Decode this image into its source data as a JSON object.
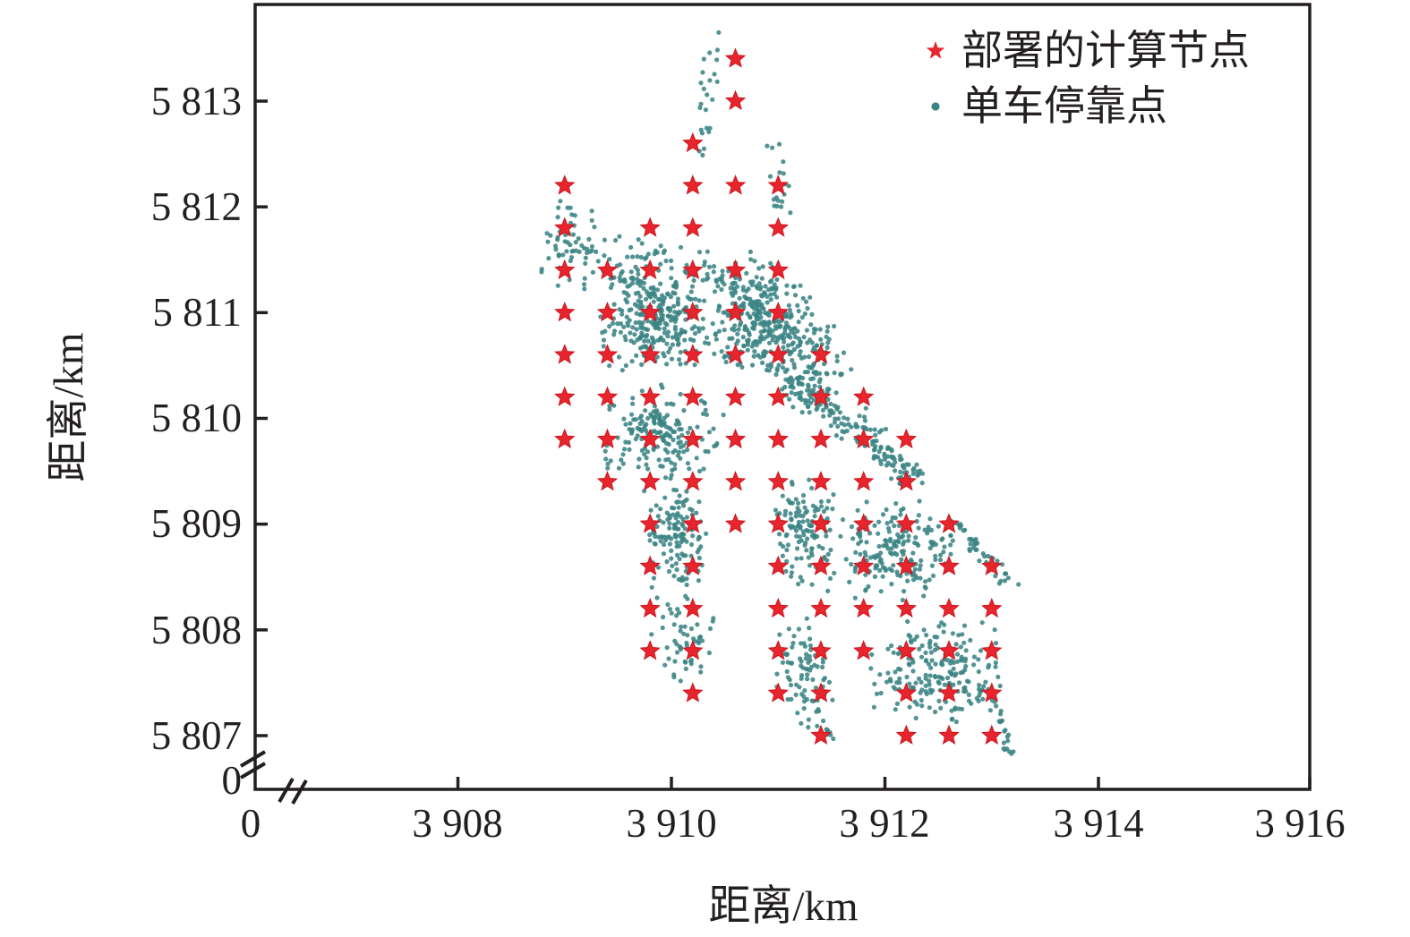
{
  "chart_data": {
    "type": "scatter",
    "title": "",
    "xlabel": "距离/km",
    "ylabel": "距离/km",
    "grid": false,
    "legend_position": "upper right inside",
    "axis_break": {
      "x_axis": true,
      "y_axis": true
    },
    "xlim": [
      3907.0,
      3916.0
    ],
    "ylim": [
      5806.5,
      5813.75
    ],
    "x_ticks": [
      {
        "label": "0",
        "value": 0
      },
      {
        "label": "3 908",
        "value": 3908
      },
      {
        "label": "3 910",
        "value": 3910
      },
      {
        "label": "3 912",
        "value": 3912
      },
      {
        "label": "3 914",
        "value": 3914
      },
      {
        "label": "3 916",
        "value": 3916
      }
    ],
    "y_ticks": [
      {
        "label": "5 813",
        "value": 5813
      },
      {
        "label": "5 812",
        "value": 5812
      },
      {
        "label": "5 811",
        "value": 5811
      },
      {
        "label": "5 810",
        "value": 5810
      },
      {
        "label": "5 809",
        "value": 5809
      },
      {
        "label": "5 808",
        "value": 5808
      },
      {
        "label": "5 807",
        "value": 5807
      },
      {
        "label": "0",
        "value": 0
      }
    ],
    "colors": {
      "axis": "#231f20",
      "background": "#ffffff"
    },
    "series": [
      {
        "name": "部署的计算节点",
        "marker": "star",
        "color": "#e8242c",
        "grid_spacing_km": 0.4,
        "points": [
          [
            3910.6,
            5813.4
          ],
          [
            3910.6,
            5813.0
          ],
          [
            3910.2,
            5812.6
          ],
          [
            3909.0,
            5812.2
          ],
          [
            3910.2,
            5812.2
          ],
          [
            3910.6,
            5812.2
          ],
          [
            3911.0,
            5812.2
          ],
          [
            3909.0,
            5811.8
          ],
          [
            3909.8,
            5811.8
          ],
          [
            3910.2,
            5811.8
          ],
          [
            3911.0,
            5811.8
          ],
          [
            3909.0,
            5811.4
          ],
          [
            3909.4,
            5811.4
          ],
          [
            3909.8,
            5811.4
          ],
          [
            3910.2,
            5811.4
          ],
          [
            3910.6,
            5811.4
          ],
          [
            3911.0,
            5811.4
          ],
          [
            3909.0,
            5811.0
          ],
          [
            3909.4,
            5811.0
          ],
          [
            3909.8,
            5811.0
          ],
          [
            3910.2,
            5811.0
          ],
          [
            3910.6,
            5811.0
          ],
          [
            3911.0,
            5811.0
          ],
          [
            3909.0,
            5810.6
          ],
          [
            3909.4,
            5810.6
          ],
          [
            3909.8,
            5810.6
          ],
          [
            3910.2,
            5810.6
          ],
          [
            3910.6,
            5810.6
          ],
          [
            3911.0,
            5810.6
          ],
          [
            3911.4,
            5810.6
          ],
          [
            3909.0,
            5810.2
          ],
          [
            3909.4,
            5810.2
          ],
          [
            3909.8,
            5810.2
          ],
          [
            3910.2,
            5810.2
          ],
          [
            3910.6,
            5810.2
          ],
          [
            3911.0,
            5810.2
          ],
          [
            3911.4,
            5810.2
          ],
          [
            3911.8,
            5810.2
          ],
          [
            3909.0,
            5809.8
          ],
          [
            3909.4,
            5809.8
          ],
          [
            3909.8,
            5809.8
          ],
          [
            3910.2,
            5809.8
          ],
          [
            3910.6,
            5809.8
          ],
          [
            3911.0,
            5809.8
          ],
          [
            3911.4,
            5809.8
          ],
          [
            3911.8,
            5809.8
          ],
          [
            3912.2,
            5809.8
          ],
          [
            3909.4,
            5809.4
          ],
          [
            3909.8,
            5809.4
          ],
          [
            3910.2,
            5809.4
          ],
          [
            3910.6,
            5809.4
          ],
          [
            3911.0,
            5809.4
          ],
          [
            3911.4,
            5809.4
          ],
          [
            3911.8,
            5809.4
          ],
          [
            3912.2,
            5809.4
          ],
          [
            3909.8,
            5809.0
          ],
          [
            3910.2,
            5809.0
          ],
          [
            3910.6,
            5809.0
          ],
          [
            3911.0,
            5809.0
          ],
          [
            3911.4,
            5809.0
          ],
          [
            3911.8,
            5809.0
          ],
          [
            3912.2,
            5809.0
          ],
          [
            3912.6,
            5809.0
          ],
          [
            3909.8,
            5808.6
          ],
          [
            3910.2,
            5808.6
          ],
          [
            3911.0,
            5808.6
          ],
          [
            3911.4,
            5808.6
          ],
          [
            3911.8,
            5808.6
          ],
          [
            3912.2,
            5808.6
          ],
          [
            3912.6,
            5808.6
          ],
          [
            3913.0,
            5808.6
          ],
          [
            3909.8,
            5808.2
          ],
          [
            3910.2,
            5808.2
          ],
          [
            3911.0,
            5808.2
          ],
          [
            3911.4,
            5808.2
          ],
          [
            3911.8,
            5808.2
          ],
          [
            3912.2,
            5808.2
          ],
          [
            3912.6,
            5808.2
          ],
          [
            3913.0,
            5808.2
          ],
          [
            3909.8,
            5807.8
          ],
          [
            3910.2,
            5807.8
          ],
          [
            3911.0,
            5807.8
          ],
          [
            3911.4,
            5807.8
          ],
          [
            3911.8,
            5807.8
          ],
          [
            3912.2,
            5807.8
          ],
          [
            3912.6,
            5807.8
          ],
          [
            3913.0,
            5807.8
          ],
          [
            3910.2,
            5807.4
          ],
          [
            3911.0,
            5807.4
          ],
          [
            3911.4,
            5807.4
          ],
          [
            3912.2,
            5807.4
          ],
          [
            3912.6,
            5807.4
          ],
          [
            3913.0,
            5807.4
          ],
          [
            3911.4,
            5807.0
          ],
          [
            3912.2,
            5807.0
          ],
          [
            3912.6,
            5807.0
          ],
          [
            3913.0,
            5807.0
          ]
        ]
      },
      {
        "name": "单车停靠点",
        "marker": "dot",
        "color": "#3b8484",
        "point_model": "clustered-approximation",
        "seed": 20240523,
        "approx_count": 2056,
        "clusters": [
          {
            "type": "line",
            "x1": 3910.45,
            "y1": 5813.65,
            "x2": 3910.3,
            "y2": 5812.5,
            "w": 0.3,
            "n": 24
          },
          {
            "type": "blob",
            "cx": 3911.0,
            "cy": 5812.2,
            "rx": 0.13,
            "ry": 0.45,
            "n": 20
          },
          {
            "type": "blob",
            "cx": 3909.05,
            "cy": 5811.65,
            "rx": 0.3,
            "ry": 0.48,
            "n": 60
          },
          {
            "type": "blob",
            "cx": 3909.7,
            "cy": 5811.5,
            "rx": 0.45,
            "ry": 0.28,
            "n": 45
          },
          {
            "type": "blob",
            "cx": 3909.85,
            "cy": 5810.95,
            "rx": 0.55,
            "ry": 0.52,
            "n": 280
          },
          {
            "type": "blob",
            "cx": 3910.85,
            "cy": 5810.9,
            "rx": 0.5,
            "ry": 0.5,
            "n": 280
          },
          {
            "type": "blob",
            "cx": 3911.35,
            "cy": 5810.58,
            "rx": 0.35,
            "ry": 0.44,
            "n": 80
          },
          {
            "type": "blob",
            "cx": 3910.5,
            "cy": 5811.4,
            "rx": 0.5,
            "ry": 0.22,
            "n": 40
          },
          {
            "type": "blob",
            "cx": 3909.9,
            "cy": 5809.85,
            "rx": 0.6,
            "ry": 0.5,
            "n": 180
          },
          {
            "type": "line",
            "x1": 3911.0,
            "y1": 5810.45,
            "x2": 3912.3,
            "y2": 5809.45,
            "w": 0.4,
            "n": 190
          },
          {
            "type": "blob",
            "cx": 3910.05,
            "cy": 5808.9,
            "rx": 0.32,
            "ry": 0.6,
            "n": 130
          },
          {
            "type": "blob",
            "cx": 3911.25,
            "cy": 5808.9,
            "rx": 0.33,
            "ry": 0.55,
            "n": 125
          },
          {
            "type": "blob",
            "cx": 3912.15,
            "cy": 5808.75,
            "rx": 0.6,
            "ry": 0.5,
            "n": 185
          },
          {
            "type": "line",
            "x1": 3912.65,
            "y1": 5809.0,
            "x2": 3913.25,
            "y2": 5808.4,
            "w": 0.22,
            "n": 45
          },
          {
            "type": "blob",
            "cx": 3910.1,
            "cy": 5807.95,
            "rx": 0.3,
            "ry": 0.45,
            "n": 60
          },
          {
            "type": "blob",
            "cx": 3911.25,
            "cy": 5807.6,
            "rx": 0.3,
            "ry": 0.55,
            "n": 80
          },
          {
            "type": "blob",
            "cx": 3912.5,
            "cy": 5807.6,
            "rx": 0.68,
            "ry": 0.55,
            "n": 200
          },
          {
            "type": "line",
            "x1": 3913.0,
            "y1": 5807.35,
            "x2": 3913.15,
            "y2": 5806.85,
            "w": 0.14,
            "n": 22
          },
          {
            "type": "line",
            "x1": 3911.35,
            "y1": 5807.25,
            "x2": 3911.5,
            "y2": 5806.95,
            "w": 0.1,
            "n": 10
          }
        ]
      }
    ]
  },
  "legend": {
    "items": [
      {
        "label": "部署的计算节点",
        "marker": "star",
        "color": "#e8242c"
      },
      {
        "label": "单车停靠点",
        "marker": "dot",
        "color": "#3b8484"
      }
    ]
  }
}
